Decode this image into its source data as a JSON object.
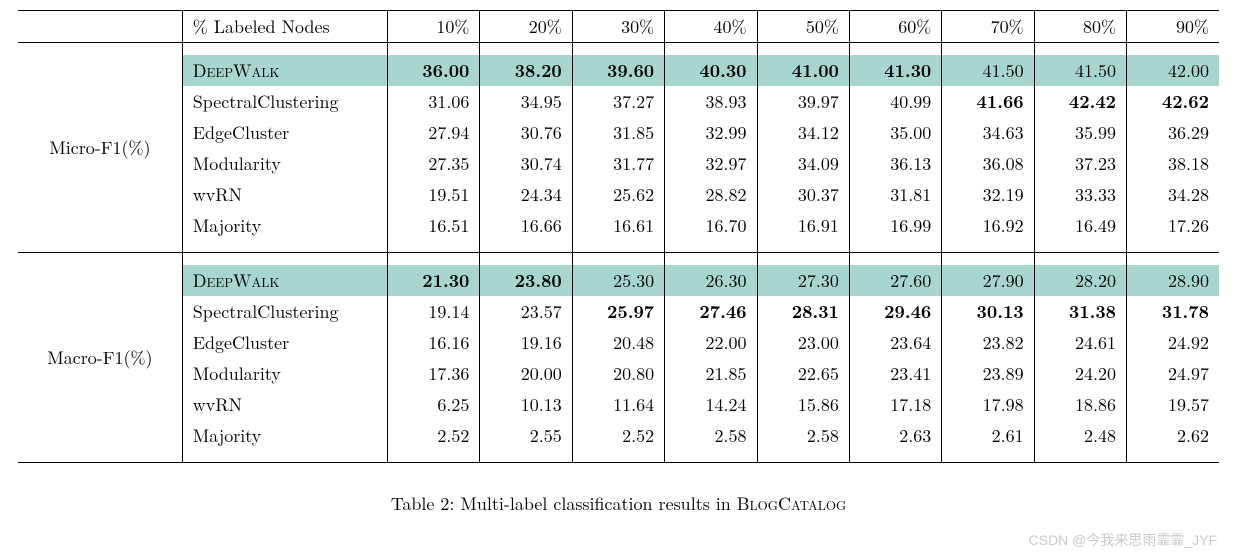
{
  "header": {
    "col0": "",
    "col1": "% Labeled Nodes",
    "pct": [
      "10%",
      "20%",
      "30%",
      "40%",
      "50%",
      "60%",
      "70%",
      "80%",
      "90%"
    ]
  },
  "sections": [
    {
      "metric": "Micro-F1(%)",
      "methods": [
        {
          "name": "DeepWalk",
          "smallcaps": true,
          "highlight": true,
          "values": [
            "36.00",
            "38.20",
            "39.60",
            "40.30",
            "41.00",
            "41.30",
            "41.50",
            "41.50",
            "42.00"
          ],
          "bold": [
            true,
            true,
            true,
            true,
            true,
            true,
            false,
            false,
            false
          ]
        },
        {
          "name": "SpectralClustering",
          "values": [
            "31.06",
            "34.95",
            "37.27",
            "38.93",
            "39.97",
            "40.99",
            "41.66",
            "42.42",
            "42.62"
          ],
          "bold": [
            false,
            false,
            false,
            false,
            false,
            false,
            true,
            true,
            true
          ]
        },
        {
          "name": "EdgeCluster",
          "values": [
            "27.94",
            "30.76",
            "31.85",
            "32.99",
            "34.12",
            "35.00",
            "34.63",
            "35.99",
            "36.29"
          ],
          "bold": [
            false,
            false,
            false,
            false,
            false,
            false,
            false,
            false,
            false
          ]
        },
        {
          "name": "Modularity",
          "values": [
            "27.35",
            "30.74",
            "31.77",
            "32.97",
            "34.09",
            "36.13",
            "36.08",
            "37.23",
            "38.18"
          ],
          "bold": [
            false,
            false,
            false,
            false,
            false,
            false,
            false,
            false,
            false
          ]
        },
        {
          "name": "wvRN",
          "values": [
            "19.51",
            "24.34",
            "25.62",
            "28.82",
            "30.37",
            "31.81",
            "32.19",
            "33.33",
            "34.28"
          ],
          "bold": [
            false,
            false,
            false,
            false,
            false,
            false,
            false,
            false,
            false
          ]
        },
        {
          "name": "Majority",
          "values": [
            "16.51",
            "16.66",
            "16.61",
            "16.70",
            "16.91",
            "16.99",
            "16.92",
            "16.49",
            "17.26"
          ],
          "bold": [
            false,
            false,
            false,
            false,
            false,
            false,
            false,
            false,
            false
          ]
        }
      ]
    },
    {
      "metric": "Macro-F1(%)",
      "methods": [
        {
          "name": "DeepWalk",
          "smallcaps": true,
          "highlight": true,
          "values": [
            "21.30",
            "23.80",
            "25.30",
            "26.30",
            "27.30",
            "27.60",
            "27.90",
            "28.20",
            "28.90"
          ],
          "bold": [
            true,
            true,
            false,
            false,
            false,
            false,
            false,
            false,
            false
          ]
        },
        {
          "name": "SpectralClustering",
          "values": [
            "19.14",
            "23.57",
            "25.97",
            "27.46",
            "28.31",
            "29.46",
            "30.13",
            "31.38",
            "31.78"
          ],
          "bold": [
            false,
            false,
            true,
            true,
            true,
            true,
            true,
            true,
            true
          ]
        },
        {
          "name": "EdgeCluster",
          "values": [
            "16.16",
            "19.16",
            "20.48",
            "22.00",
            "23.00",
            "23.64",
            "23.82",
            "24.61",
            "24.92"
          ],
          "bold": [
            false,
            false,
            false,
            false,
            false,
            false,
            false,
            false,
            false
          ]
        },
        {
          "name": "Modularity",
          "values": [
            "17.36",
            "20.00",
            "20.80",
            "21.85",
            "22.65",
            "23.41",
            "23.89",
            "24.20",
            "24.97"
          ],
          "bold": [
            false,
            false,
            false,
            false,
            false,
            false,
            false,
            false,
            false
          ]
        },
        {
          "name": "wvRN",
          "values": [
            "6.25",
            "10.13",
            "11.64",
            "14.24",
            "15.86",
            "17.18",
            "17.98",
            "18.86",
            "19.57"
          ],
          "bold": [
            false,
            false,
            false,
            false,
            false,
            false,
            false,
            false,
            false
          ]
        },
        {
          "name": "Majority",
          "values": [
            "2.52",
            "2.55",
            "2.52",
            "2.58",
            "2.58",
            "2.63",
            "2.61",
            "2.48",
            "2.62"
          ],
          "bold": [
            false,
            false,
            false,
            false,
            false,
            false,
            false,
            false,
            false
          ]
        }
      ]
    }
  ],
  "caption_prefix": "Table 2: Multi-label classification results in ",
  "caption_dataset": "BlogCatalog",
  "watermark": "CSDN @今我来思雨霏霏_JYF",
  "style": {
    "highlight_color": "#a6d6ce",
    "font_size": 18,
    "text_color": "#000000",
    "background_color": "#ffffff",
    "watermark_color": "#c9c9c9"
  }
}
